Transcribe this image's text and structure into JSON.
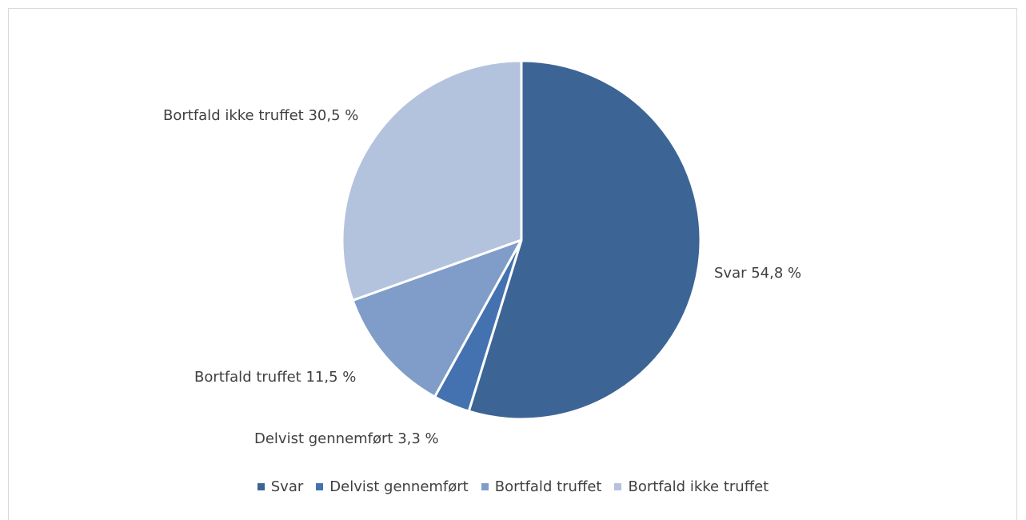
{
  "chart_data": {
    "type": "pie",
    "title": "",
    "slices": [
      {
        "name": "Svar",
        "value": 54.8,
        "label": "Svar 54,8 %",
        "color": "#3c6595"
      },
      {
        "name": "Delvist gennemført",
        "value": 3.3,
        "label": "Delvist gennemført 3,3 %",
        "color": "#4472b0"
      },
      {
        "name": "Bortfald truffet",
        "value": 11.5,
        "label": "Bortfald truffet 11,5 %",
        "color": "#7f9dc8"
      },
      {
        "name": "Bortfald ikke truffet",
        "value": 30.5,
        "label": "Bortfald ikke truffet 30,5 %",
        "color": "#b4c3dd"
      }
    ],
    "start_angle": "12 o'clock, clockwise",
    "legend_position": "bottom"
  }
}
